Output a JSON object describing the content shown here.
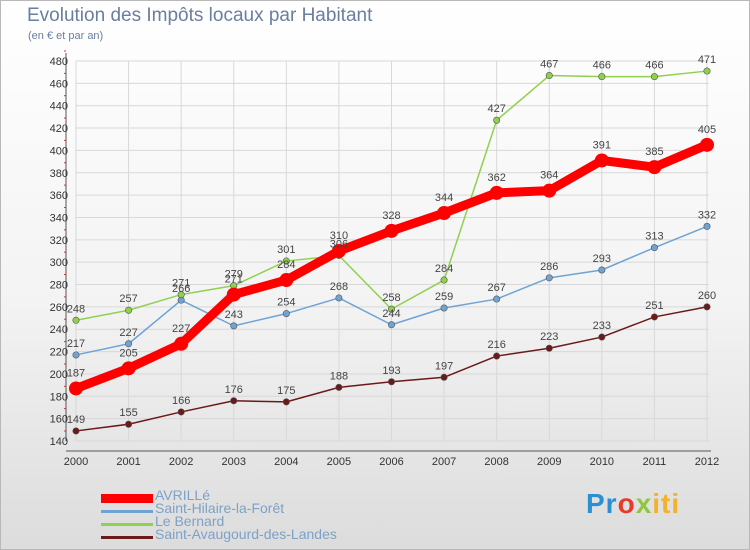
{
  "header": {
    "title": "Evolution des Impôts locaux par Habitant",
    "subtitle": "(en € et par an)"
  },
  "colors": {
    "axis_text": "#333333",
    "grid": "#d8d8d8",
    "label_text": "#444444"
  },
  "logo": {
    "parts": [
      "Pr",
      "o",
      "x",
      "iti"
    ]
  },
  "chart_data": {
    "type": "line",
    "title": "Evolution des Impôts locaux par Habitant",
    "subtitle": "(en € et par an)",
    "xlabel": "",
    "ylabel": "",
    "x": [
      "2000",
      "2001",
      "2002",
      "2003",
      "2004",
      "2005",
      "2006",
      "2007",
      "2008",
      "2009",
      "2010",
      "2011",
      "2012"
    ],
    "ylim": [
      140,
      480
    ],
    "yticks": [
      140,
      160,
      180,
      200,
      220,
      240,
      260,
      280,
      300,
      320,
      340,
      360,
      380,
      400,
      420,
      440,
      460,
      480
    ],
    "grid": true,
    "legend_position": "bottom-left",
    "series": [
      {
        "name": "AVRILLé",
        "values": [
          187,
          205,
          227,
          271,
          284,
          310,
          328,
          344,
          362,
          364,
          391,
          385,
          405
        ],
        "color": "#ff0000",
        "emphasis": true
      },
      {
        "name": "Saint-Hilaire-la-Forêt",
        "values": [
          217,
          227,
          266,
          243,
          254,
          268,
          244,
          259,
          267,
          286,
          293,
          313,
          332
        ],
        "color": "#6fa3d4",
        "emphasis": false
      },
      {
        "name": "Le Bernard",
        "values": [
          248,
          257,
          271,
          279,
          301,
          306,
          258,
          284,
          427,
          467,
          466,
          466,
          471
        ],
        "color": "#8fd14f",
        "emphasis": false
      },
      {
        "name": "Saint-Avaugourd-des-Landes",
        "values": [
          149,
          155,
          166,
          176,
          175,
          188,
          193,
          197,
          216,
          223,
          233,
          251,
          260
        ],
        "color": "#6b1a1a",
        "emphasis": false
      }
    ]
  }
}
